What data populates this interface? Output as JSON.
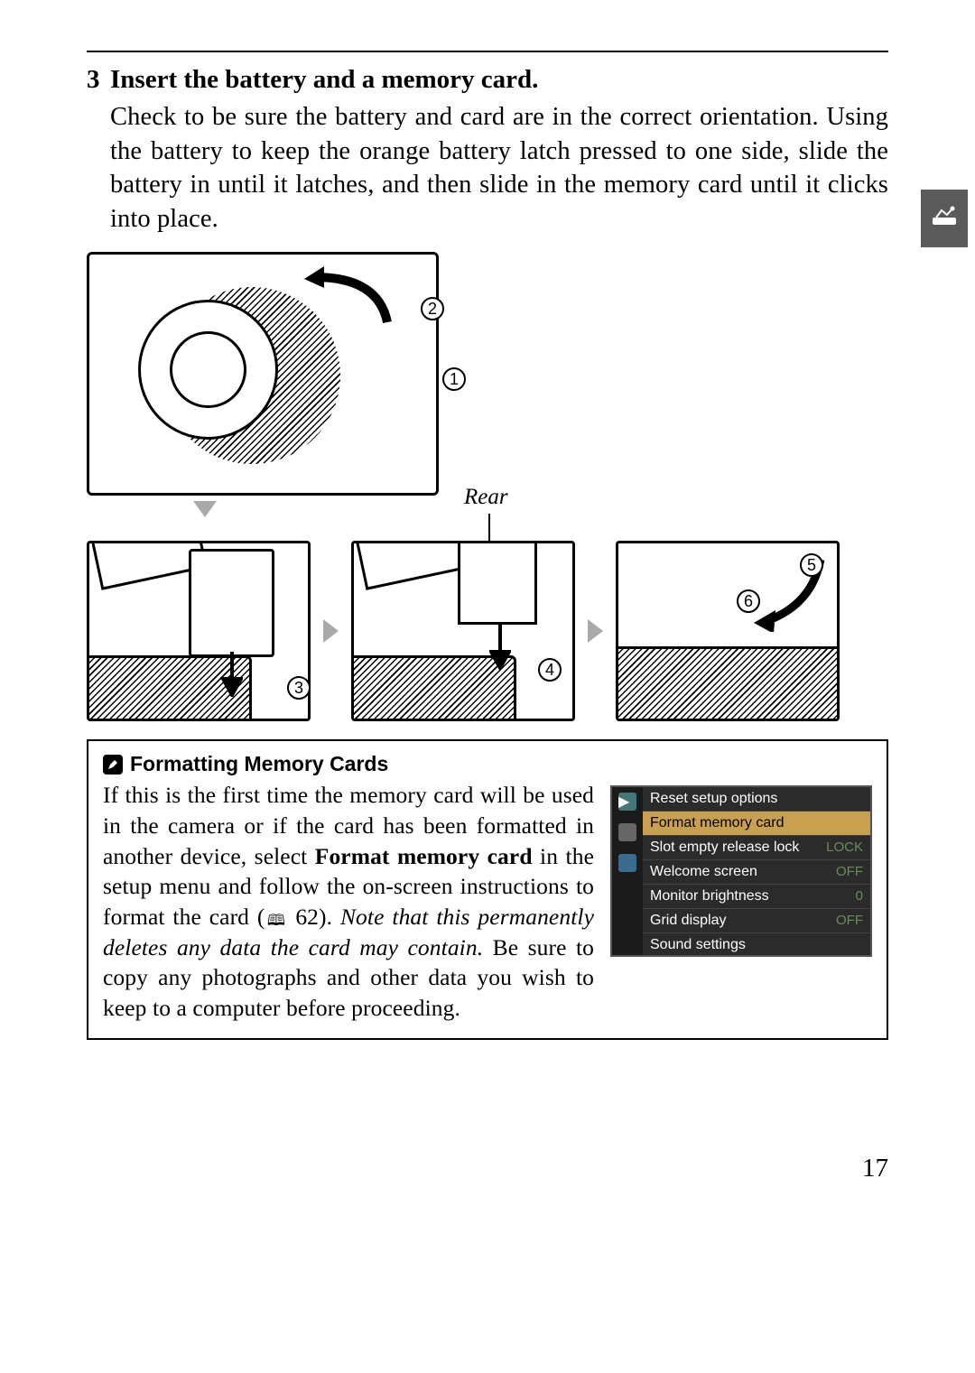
{
  "page": {
    "number": "17"
  },
  "step": {
    "number": "3",
    "title": "Insert the battery and a memory card.",
    "text": "Check to be sure the battery and card are in the correct orien­tation. Using the battery to keep the orange battery latch pressed to one side, slide the battery in until it latches, and then slide in the memory card until it clicks into place."
  },
  "figure": {
    "rear_label": "Rear",
    "callouts": {
      "c1": "1",
      "c2": "2",
      "c3": "3",
      "c4": "4",
      "c5": "5",
      "c6": "6"
    }
  },
  "note": {
    "title": "Formatting Memory Cards",
    "text_pre": "If this is the first time the memory card will be used in the camera or if the card has been formatted in another device, select ",
    "text_bold": "Format memory card",
    "text_mid": " in the setup menu and follow the on-screen instruc­tions to format the card (",
    "page_ref": "62",
    "text_post_ref": "). ",
    "text_italic": "Note that this permanently deletes any data the card may contain.",
    "text_end": " Be sure to copy any photo­graphs and other data you wish to keep to a computer before proceeding."
  },
  "menu": {
    "items": [
      {
        "label": "Reset setup options",
        "value": ""
      },
      {
        "label": "Format memory card",
        "value": ""
      },
      {
        "label": "Slot empty release lock",
        "value": "LOCK"
      },
      {
        "label": "Welcome screen",
        "value": "OFF"
      },
      {
        "label": "Monitor brightness",
        "value": "0"
      },
      {
        "label": "Grid display",
        "value": "OFF"
      },
      {
        "label": "Sound settings",
        "value": ""
      }
    ],
    "highlight_index": 1
  },
  "colors": {
    "highlight_bg": "#c9a050",
    "menu_bg": "#2b2b2b",
    "arrow_gray": "#aaaaaa",
    "tab_bg": "#5a5a5a",
    "menu_value": "#6a8d5a"
  }
}
